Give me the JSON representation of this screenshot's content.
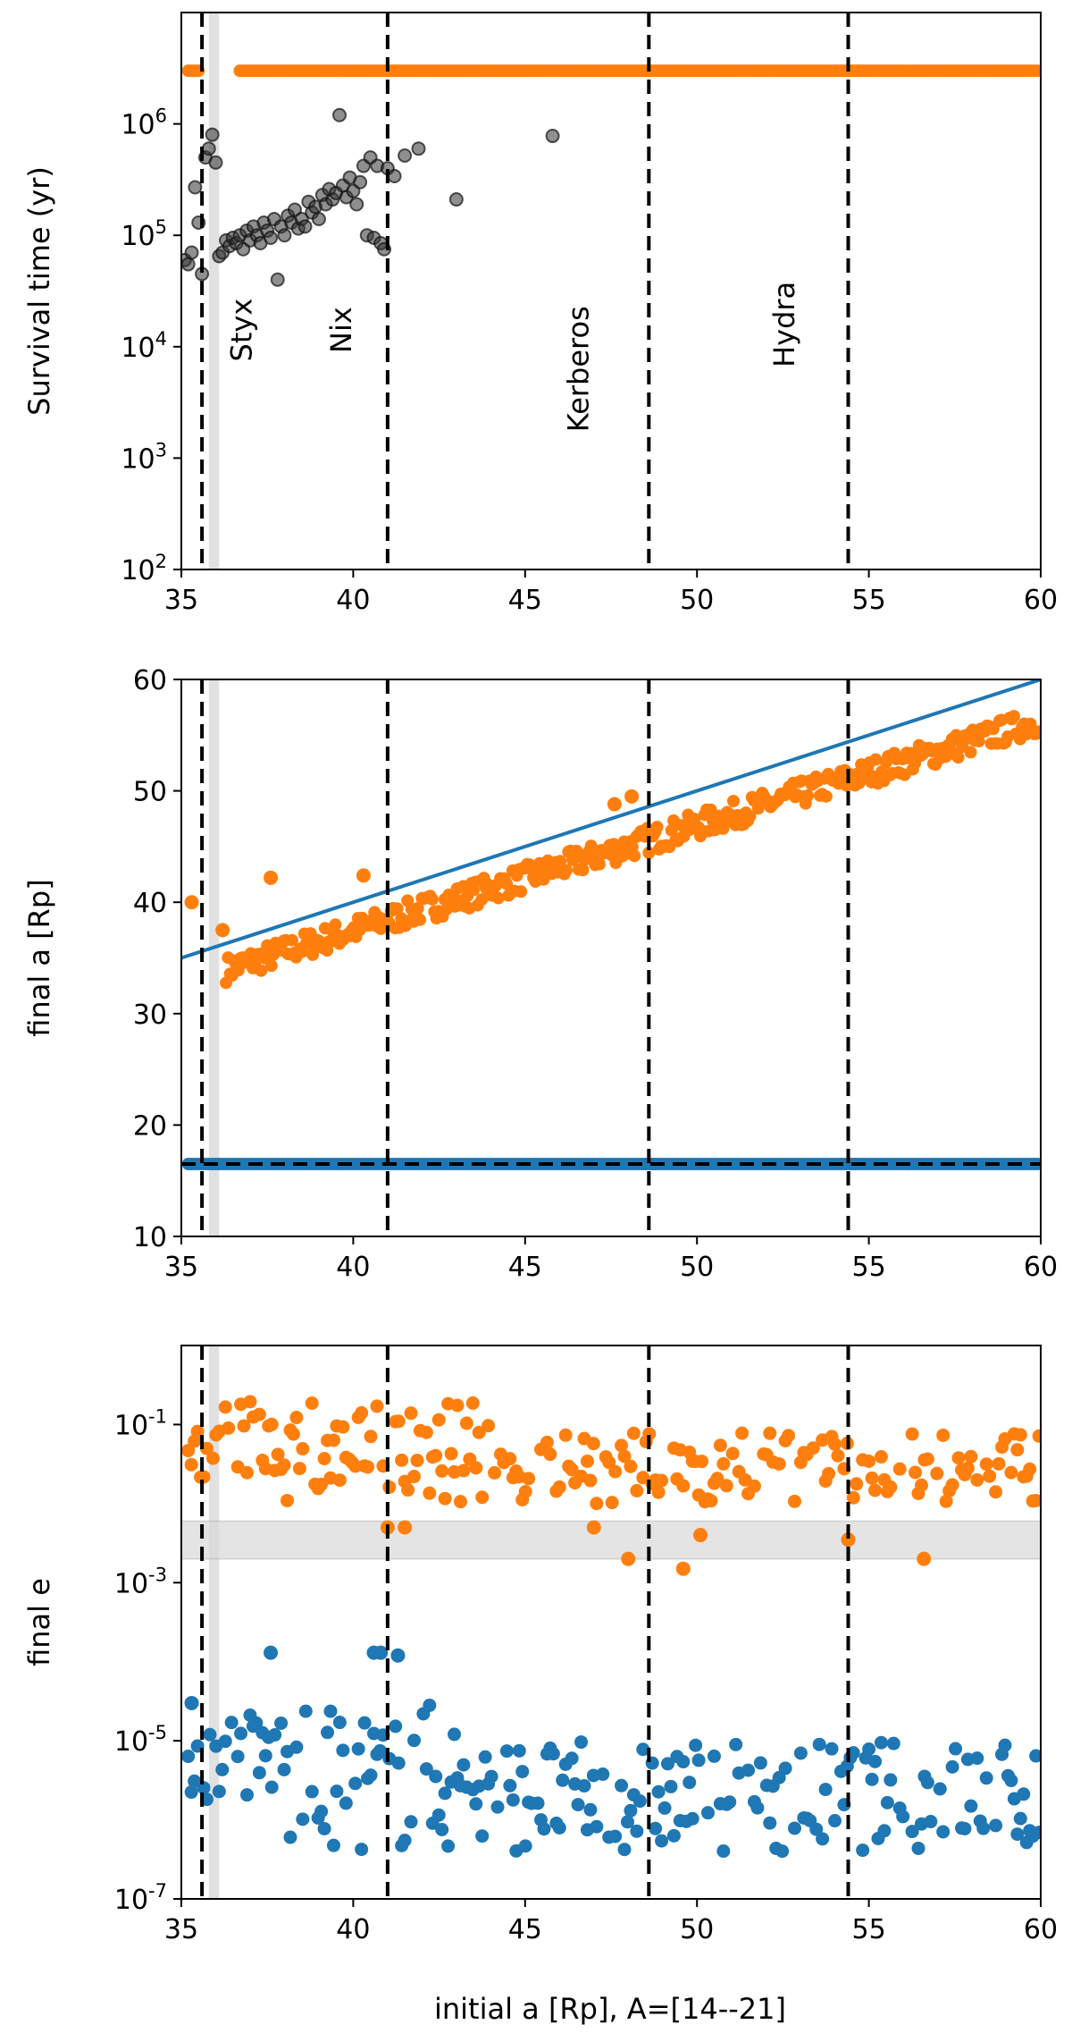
{
  "colors": {
    "orange": "#ff7f0e",
    "blue": "#1f77b4",
    "black_points": "#333333",
    "grey_band": "#d9d9d9"
  },
  "xlabel": "initial a [Rp], A=[14--21]",
  "moon_positions": [
    35.6,
    41.0,
    48.6,
    54.4
  ],
  "chart_data": [
    {
      "type": "scatter",
      "ylabel": "Survival time (yr)",
      "yscale": "log",
      "xlim": [
        35,
        60
      ],
      "ylim_exp": [
        2,
        7
      ],
      "xticks": [
        "35",
        "40",
        "45",
        "50",
        "55",
        "60"
      ],
      "yticks": [
        {
          "base": "10",
          "exp": "2"
        },
        {
          "base": "10",
          "exp": "3"
        },
        {
          "base": "10",
          "exp": "4"
        },
        {
          "base": "10",
          "exp": "5"
        },
        {
          "base": "10",
          "exp": "6"
        }
      ],
      "moon_labels": [
        {
          "text": "Styx",
          "x": 36.8,
          "y_exp": 4.15
        },
        {
          "text": "Nix",
          "x": 39.7,
          "y_exp": 4.15
        },
        {
          "text": "Kerberos",
          "x": 46.6,
          "y_exp": 3.8
        },
        {
          "text": "Hydra",
          "x": 52.6,
          "y_exp": 4.2
        }
      ],
      "shaded_band_x": [
        35.8,
        36.1
      ],
      "series": [
        {
          "color": "orange",
          "survived_x_range": [
            35.2,
            60
          ],
          "gap": [
            35.6,
            36.7
          ],
          "value": 3000000
        },
        {
          "color": "black",
          "points": [
            [
              35.1,
              60000
            ],
            [
              35.2,
              55000
            ],
            [
              35.3,
              70000
            ],
            [
              35.4,
              270000
            ],
            [
              35.5,
              130000
            ],
            [
              35.6,
              45000
            ],
            [
              35.7,
              500000
            ],
            [
              35.8,
              600000
            ],
            [
              35.9,
              800000
            ],
            [
              36.0,
              450000
            ],
            [
              36.1,
              65000
            ],
            [
              36.2,
              70000
            ],
            [
              36.3,
              90000
            ],
            [
              36.4,
              80000
            ],
            [
              36.5,
              95000
            ],
            [
              36.6,
              85000
            ],
            [
              36.7,
              100000
            ],
            [
              36.8,
              75000
            ],
            [
              36.9,
              110000
            ],
            [
              37.0,
              90000
            ],
            [
              37.1,
              120000
            ],
            [
              37.2,
              100000
            ],
            [
              37.3,
              85000
            ],
            [
              37.4,
              130000
            ],
            [
              37.5,
              110000
            ],
            [
              37.6,
              95000
            ],
            [
              37.7,
              140000
            ],
            [
              37.8,
              40000
            ],
            [
              37.9,
              120000
            ],
            [
              38.0,
              100000
            ],
            [
              38.1,
              150000
            ],
            [
              38.2,
              130000
            ],
            [
              38.3,
              170000
            ],
            [
              38.4,
              115000
            ],
            [
              38.5,
              140000
            ],
            [
              38.6,
              120000
            ],
            [
              38.7,
              200000
            ],
            [
              38.8,
              160000
            ],
            [
              38.9,
              180000
            ],
            [
              39.0,
              140000
            ],
            [
              39.1,
              230000
            ],
            [
              39.2,
              190000
            ],
            [
              39.3,
              260000
            ],
            [
              39.4,
              210000
            ],
            [
              39.5,
              240000
            ],
            [
              39.6,
              1200000
            ],
            [
              39.7,
              280000
            ],
            [
              39.8,
              220000
            ],
            [
              39.9,
              330000
            ],
            [
              40.0,
              250000
            ],
            [
              40.1,
              190000
            ],
            [
              40.2,
              300000
            ],
            [
              40.3,
              420000
            ],
            [
              40.4,
              100000
            ],
            [
              40.5,
              500000
            ],
            [
              40.6,
              95000
            ],
            [
              40.7,
              420000
            ],
            [
              40.8,
              85000
            ],
            [
              40.9,
              75000
            ],
            [
              41.0,
              400000
            ],
            [
              41.2,
              340000
            ],
            [
              41.5,
              520000
            ],
            [
              41.9,
              600000
            ],
            [
              43.0,
              210000
            ],
            [
              45.8,
              780000
            ]
          ]
        }
      ]
    },
    {
      "type": "scatter",
      "ylabel": "final a [Rp]",
      "xlim": [
        35,
        60
      ],
      "ylim": [
        10,
        60
      ],
      "xticks": [
        "35",
        "40",
        "45",
        "50",
        "55",
        "60"
      ],
      "yticks": [
        "10",
        "20",
        "30",
        "40",
        "50",
        "60"
      ],
      "reference_line": {
        "x": [
          35,
          60
        ],
        "y": [
          35,
          60
        ],
        "color": "blue"
      },
      "hline": 16.5,
      "shaded_band_x": [
        35.8,
        36.1
      ],
      "series": [
        {
          "color": "orange",
          "trend": {
            "slope": 0.944,
            "intercept": -0.3,
            "x_range": [
              36.3,
              60
            ]
          },
          "outliers": [
            [
              35.3,
              40.0
            ],
            [
              36.2,
              37.5
            ],
            [
              37.6,
              42.2
            ],
            [
              47.6,
              48.8
            ],
            [
              48.1,
              49.5
            ],
            [
              40.3,
              42.4
            ]
          ]
        },
        {
          "color": "blue",
          "value": 16.5,
          "x_range": [
            35.2,
            60
          ]
        }
      ]
    },
    {
      "type": "scatter",
      "ylabel": "final e",
      "yscale": "log",
      "xlim": [
        35,
        60
      ],
      "ylim_exp": [
        -7,
        0
      ],
      "xticks": [
        "35",
        "40",
        "45",
        "50",
        "55",
        "60"
      ],
      "yticks": [
        {
          "base": "10",
          "exp": "-1"
        },
        {
          "base": "10",
          "exp": "-3"
        },
        {
          "base": "10",
          "exp": "-5"
        },
        {
          "base": "10",
          "exp": "-7"
        }
      ],
      "grey_band_y": [
        0.002,
        0.006
      ],
      "shaded_band_x": [
        35.8,
        36.1
      ],
      "series": [
        {
          "color": "orange",
          "typical_range": [
            0.01,
            0.2
          ],
          "outliers": [
            [
              41.0,
              0.005
            ],
            [
              41.5,
              0.005
            ],
            [
              47.0,
              0.005
            ],
            [
              48.0,
              0.002
            ],
            [
              49.6,
              0.0015
            ],
            [
              50.1,
              0.004
            ],
            [
              54.4,
              0.0035
            ],
            [
              56.6,
              0.002
            ]
          ]
        },
        {
          "color": "blue",
          "typical_range": [
            4e-07,
            4e-05
          ],
          "outliers": [
            [
              37.6,
              0.00013
            ],
            [
              40.6,
              0.00013
            ],
            [
              40.8,
              0.00013
            ],
            [
              41.3,
              0.00012
            ],
            [
              35.3,
              3e-05
            ]
          ]
        }
      ]
    }
  ]
}
